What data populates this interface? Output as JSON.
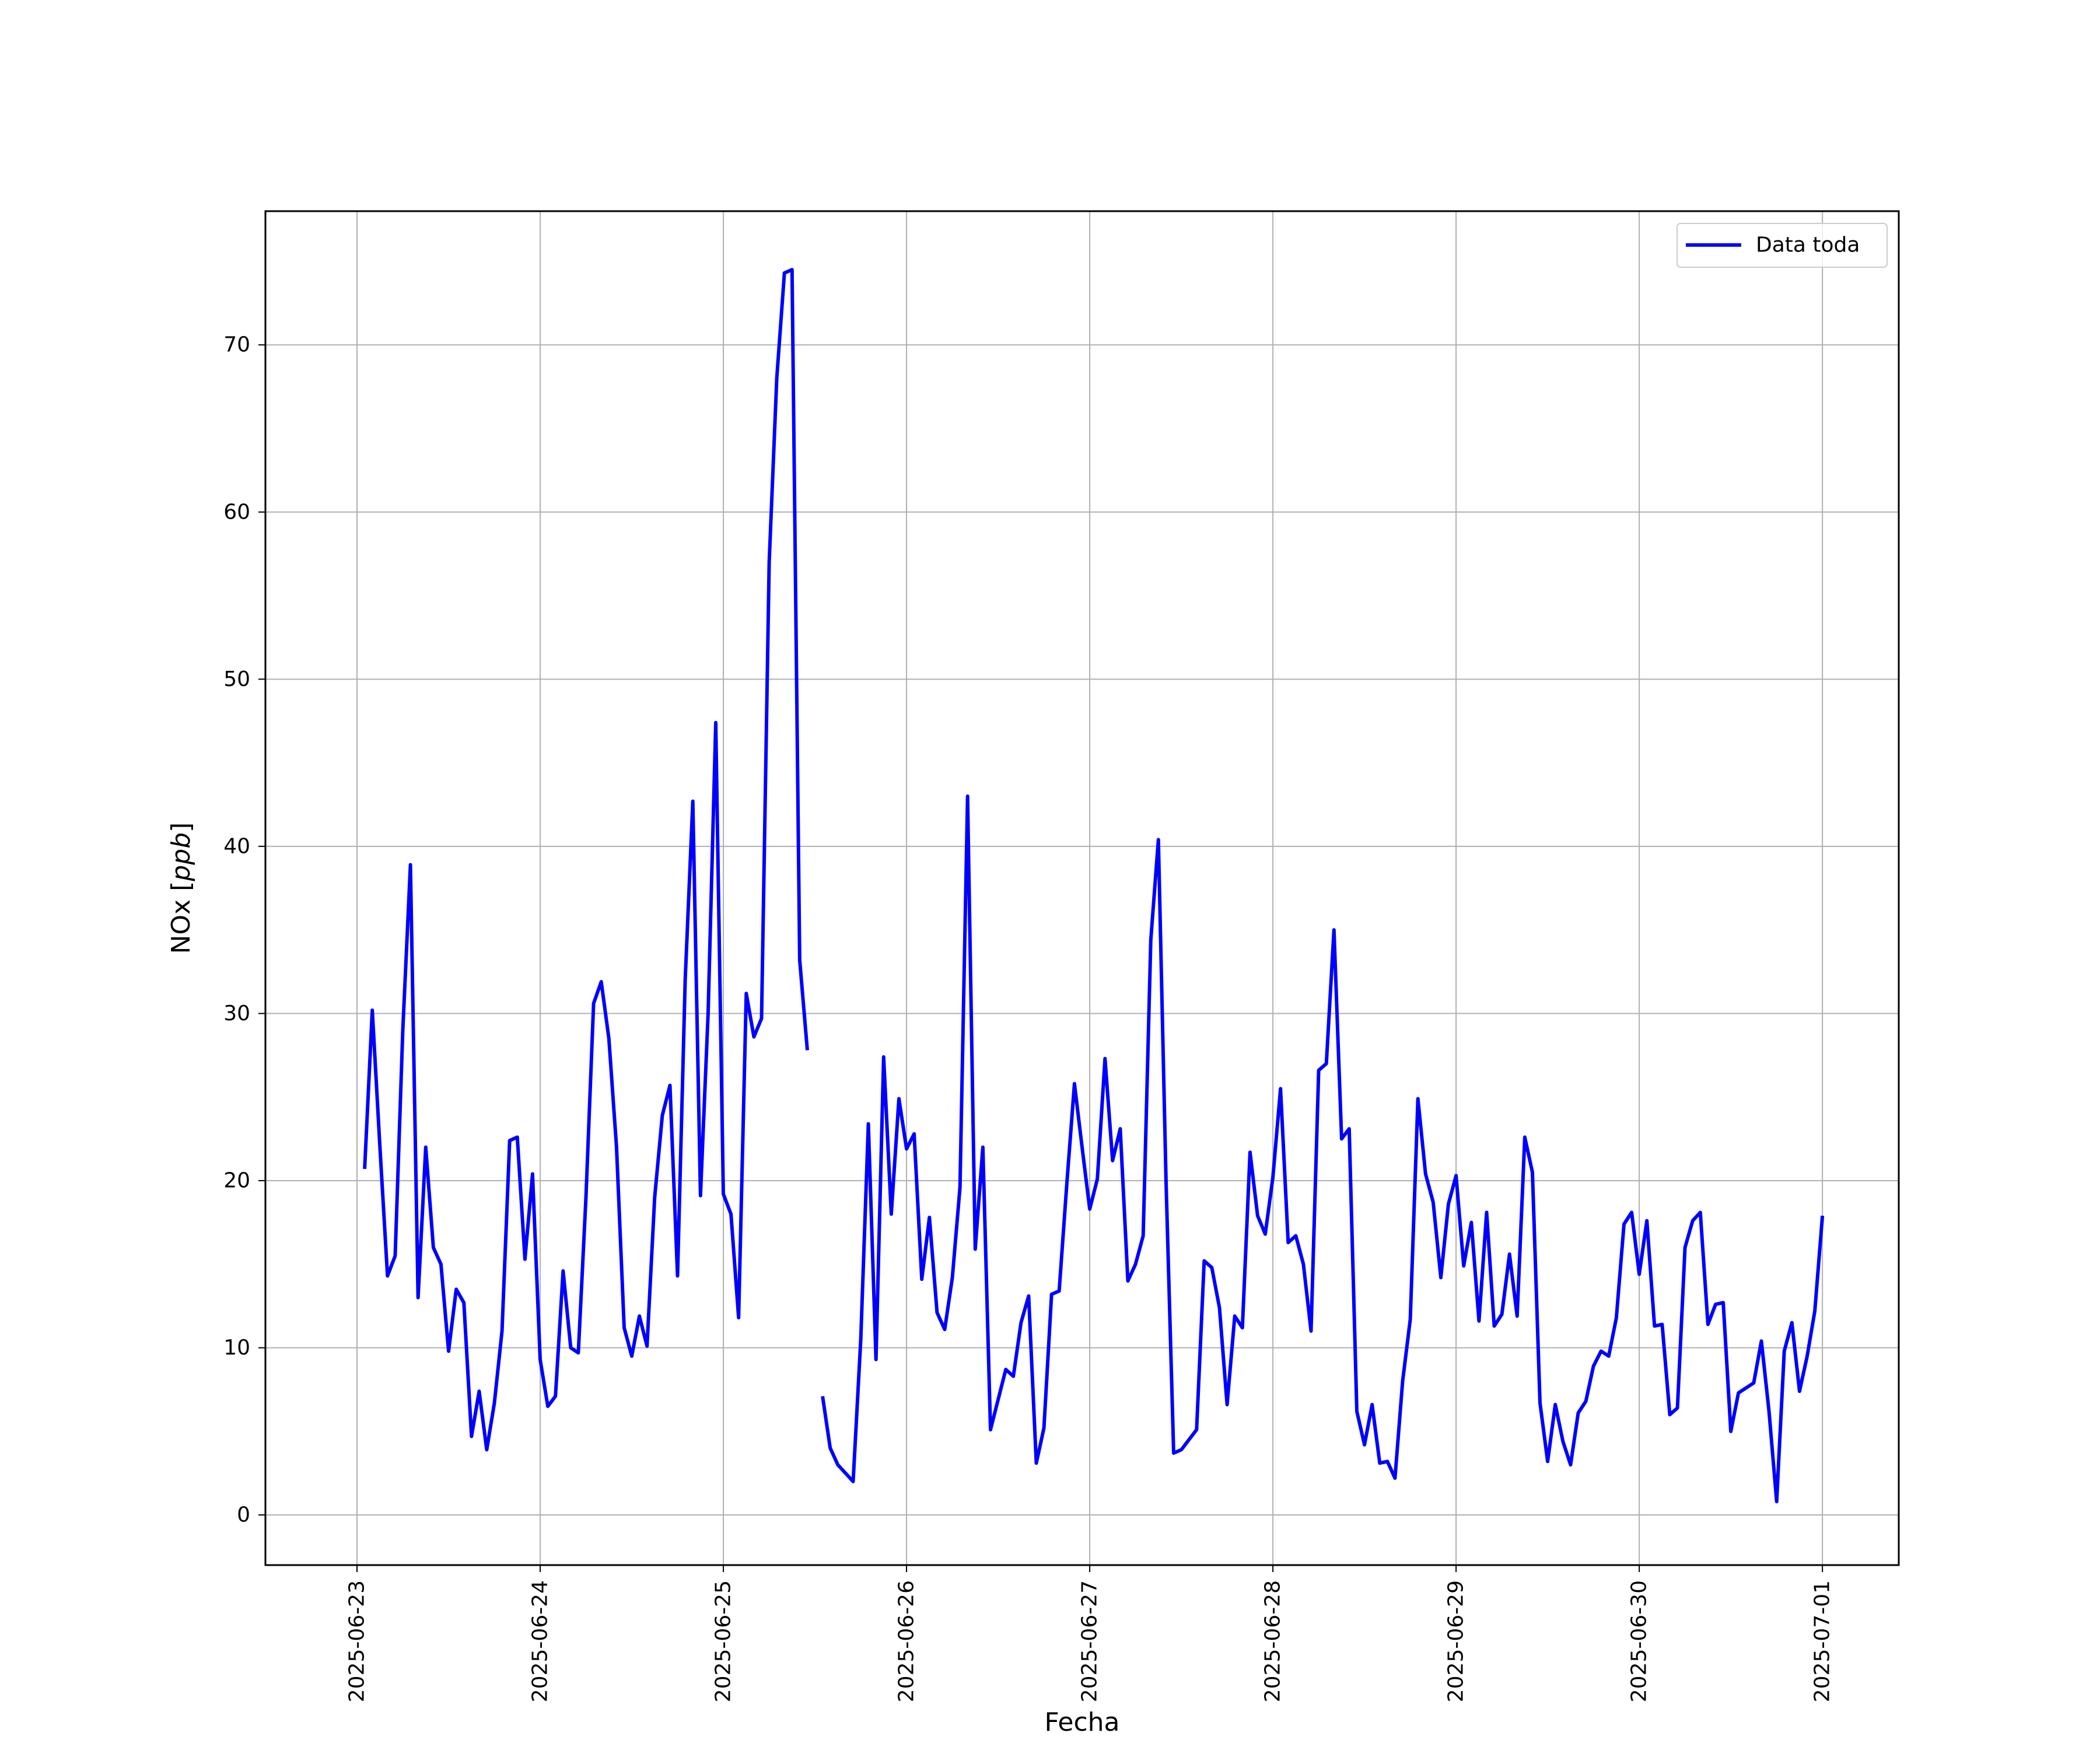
{
  "chart_data": {
    "type": "line",
    "xlabel": "Fecha",
    "ylabel_main": "NOx [",
    "ylabel_unit": "ppb",
    "ylabel_close": "]",
    "xlim": [
      "2025-06-22T12:00",
      "2025-07-01T10:00"
    ],
    "ylim": [
      -3,
      78
    ],
    "xticks": [
      "2025-06-23",
      "2025-06-24",
      "2025-06-25",
      "2025-06-26",
      "2025-06-27",
      "2025-06-28",
      "2025-06-29",
      "2025-06-30",
      "2025-07-01"
    ],
    "yticks": [
      0,
      10,
      20,
      30,
      40,
      50,
      60,
      70
    ],
    "grid": true,
    "legend_position": "top-right",
    "colors": {
      "series": "#0000ff",
      "grid": "#b0b0b0",
      "axis": "#000000"
    },
    "series": [
      {
        "name": "Data toda",
        "x": [
          "2025-06-23T01:00",
          "2025-06-23T02:00",
          "2025-06-23T03:00",
          "2025-06-23T04:00",
          "2025-06-23T05:00",
          "2025-06-23T06:00",
          "2025-06-23T07:00",
          "2025-06-23T08:00",
          "2025-06-23T09:00",
          "2025-06-23T10:00",
          "2025-06-23T11:00",
          "2025-06-23T12:00",
          "2025-06-23T13:00",
          "2025-06-23T14:00",
          "2025-06-23T15:00",
          "2025-06-23T16:00",
          "2025-06-23T17:00",
          "2025-06-23T18:00",
          "2025-06-23T19:00",
          "2025-06-23T20:00",
          "2025-06-23T21:00",
          "2025-06-23T22:00",
          "2025-06-23T23:00",
          "2025-06-24T00:00",
          "2025-06-24T01:00",
          "2025-06-24T02:00",
          "2025-06-24T03:00",
          "2025-06-24T04:00",
          "2025-06-24T05:00",
          "2025-06-24T06:00",
          "2025-06-24T07:00",
          "2025-06-24T08:00",
          "2025-06-24T09:00",
          "2025-06-24T10:00",
          "2025-06-24T11:00",
          "2025-06-24T12:00",
          "2025-06-24T13:00",
          "2025-06-24T14:00",
          "2025-06-24T15:00",
          "2025-06-24T16:00",
          "2025-06-24T17:00",
          "2025-06-24T18:00",
          "2025-06-24T19:00",
          "2025-06-24T20:00",
          "2025-06-24T21:00",
          "2025-06-24T22:00",
          "2025-06-24T23:00",
          "2025-06-25T00:00",
          "2025-06-25T01:00",
          "2025-06-25T02:00",
          "2025-06-25T03:00",
          "2025-06-25T04:00",
          "2025-06-25T05:00",
          "2025-06-25T06:00",
          "2025-06-25T07:00",
          "2025-06-25T08:00",
          "2025-06-25T09:00",
          "2025-06-25T10:00",
          "2025-06-25T11:00",
          null,
          "2025-06-25T13:00",
          "2025-06-25T14:00",
          "2025-06-25T15:00",
          "2025-06-25T16:00",
          "2025-06-25T17:00",
          "2025-06-25T18:00",
          "2025-06-25T19:00",
          "2025-06-25T20:00",
          "2025-06-25T21:00",
          "2025-06-25T22:00",
          "2025-06-25T23:00",
          "2025-06-26T00:00",
          "2025-06-26T01:00",
          "2025-06-26T02:00",
          "2025-06-26T03:00",
          "2025-06-26T04:00",
          "2025-06-26T05:00",
          "2025-06-26T06:00",
          "2025-06-26T07:00",
          "2025-06-26T08:00",
          "2025-06-26T09:00",
          "2025-06-26T10:00",
          "2025-06-26T11:00",
          "2025-06-26T12:00",
          "2025-06-26T13:00",
          "2025-06-26T14:00",
          "2025-06-26T15:00",
          "2025-06-26T16:00",
          "2025-06-26T17:00",
          "2025-06-26T18:00",
          "2025-06-26T19:00",
          "2025-06-26T20:00",
          "2025-06-26T21:00",
          "2025-06-26T22:00",
          "2025-06-26T23:00",
          "2025-06-27T00:00",
          "2025-06-27T01:00",
          "2025-06-27T02:00",
          "2025-06-27T03:00",
          "2025-06-27T04:00",
          "2025-06-27T05:00",
          "2025-06-27T06:00",
          "2025-06-27T07:00",
          "2025-06-27T08:00",
          "2025-06-27T09:00",
          "2025-06-27T10:00",
          "2025-06-27T11:00",
          "2025-06-27T12:00",
          "2025-06-27T13:00",
          "2025-06-27T14:00",
          "2025-06-27T15:00",
          "2025-06-27T16:00",
          "2025-06-27T17:00",
          "2025-06-27T18:00",
          "2025-06-27T19:00",
          "2025-06-27T20:00",
          "2025-06-27T21:00",
          "2025-06-27T22:00",
          "2025-06-27T23:00",
          "2025-06-28T00:00",
          "2025-06-28T01:00",
          "2025-06-28T02:00",
          "2025-06-28T03:00",
          "2025-06-28T04:00",
          "2025-06-28T05:00",
          "2025-06-28T06:00",
          "2025-06-28T07:00",
          "2025-06-28T08:00",
          "2025-06-28T09:00",
          "2025-06-28T10:00",
          "2025-06-28T11:00",
          "2025-06-28T12:00",
          "2025-06-28T13:00",
          "2025-06-28T14:00",
          "2025-06-28T15:00",
          "2025-06-28T16:00",
          "2025-06-28T17:00",
          "2025-06-28T18:00",
          "2025-06-28T19:00",
          "2025-06-28T20:00",
          "2025-06-28T21:00",
          "2025-06-28T22:00",
          "2025-06-28T23:00",
          "2025-06-29T00:00",
          "2025-06-29T01:00",
          "2025-06-29T02:00",
          "2025-06-29T03:00",
          "2025-06-29T04:00",
          "2025-06-29T05:00",
          "2025-06-29T06:00",
          "2025-06-29T07:00",
          "2025-06-29T08:00",
          "2025-06-29T09:00",
          "2025-06-29T10:00",
          "2025-06-29T11:00",
          "2025-06-29T12:00",
          "2025-06-29T13:00",
          "2025-06-29T14:00",
          "2025-06-29T15:00",
          "2025-06-29T16:00",
          "2025-06-29T17:00",
          "2025-06-29T18:00",
          "2025-06-29T19:00",
          "2025-06-29T20:00",
          "2025-06-29T21:00",
          "2025-06-29T22:00",
          "2025-06-29T23:00",
          "2025-06-30T00:00",
          "2025-06-30T01:00",
          "2025-06-30T02:00",
          "2025-06-30T03:00",
          "2025-06-30T04:00",
          "2025-06-30T05:00",
          "2025-06-30T06:00",
          "2025-06-30T07:00",
          "2025-06-30T08:00",
          "2025-06-30T09:00",
          "2025-06-30T10:00",
          "2025-06-30T11:00",
          "2025-06-30T12:00",
          "2025-06-30T13:00",
          "2025-06-30T14:00",
          "2025-06-30T15:00",
          "2025-06-30T16:00",
          "2025-06-30T17:00",
          "2025-06-30T18:00",
          "2025-06-30T19:00",
          "2025-06-30T20:00",
          "2025-06-30T21:00",
          "2025-06-30T22:00",
          "2025-06-30T23:00",
          "2025-07-01T00:00"
        ],
        "values": [
          20.7,
          30.2,
          22,
          14.3,
          15.5,
          29,
          38.9,
          13,
          22,
          16,
          15,
          9.8,
          13.5,
          12.7,
          4.7,
          7.4,
          3.9,
          6.7,
          11,
          22.4,
          22.6,
          15.3,
          20.4,
          9.3,
          6.5,
          7.1,
          14.6,
          10,
          9.7,
          19,
          30.6,
          31.9,
          28.5,
          22,
          11.2,
          9.5,
          11.9,
          10.1,
          19,
          23.9,
          25.7,
          14.3,
          32,
          42.7,
          19.1,
          30,
          47.4,
          19.2,
          18,
          11.8,
          31.2,
          28.6,
          29.7,
          57,
          68,
          74.3,
          74.5,
          33.2,
          27.8,
          null,
          7.1,
          4,
          3,
          2.5,
          2,
          10.5,
          23.4,
          9.3,
          27.4,
          18,
          24.9,
          21.9,
          22.8,
          14.1,
          17.8,
          12.1,
          11.1,
          14.2,
          19.6,
          43,
          15.9,
          22,
          5.1,
          6.9,
          8.7,
          8.3,
          11.5,
          13.1,
          3.1,
          5.2,
          13.2,
          13.4,
          19.8,
          25.8,
          22,
          18.3,
          20.1,
          27.3,
          21.2,
          23.1,
          14,
          15,
          16.7,
          34.4,
          40.4,
          20,
          3.7,
          3.9,
          4.5,
          5.1,
          15.2,
          14.8,
          12.4,
          6.6,
          11.9,
          11.2,
          21.7,
          17.9,
          16.8,
          20.2,
          25.5,
          16.3,
          16.7,
          15,
          11,
          26.6,
          27,
          35,
          22.5,
          23.1,
          6.2,
          4.2,
          6.6,
          3.1,
          3.2,
          2.2,
          8,
          11.7,
          24.9,
          20.4,
          18.7,
          14.2,
          18.6,
          20.3,
          14.9,
          17.5,
          11.6,
          18.1,
          11.3,
          12,
          15.6,
          11.9,
          22.6,
          20.5,
          6.7,
          3.2,
          6.6,
          4.4,
          3,
          6.1,
          6.8,
          8.9,
          9.8,
          9.5,
          11.8,
          17.4,
          18.1,
          14.4,
          17.6,
          11.3,
          11.4,
          6,
          6.4,
          16,
          17.6,
          18.1,
          11.4,
          12.6,
          12.7,
          5,
          7.3,
          7.6,
          7.9,
          10.4,
          6.2,
          0.8,
          9.8,
          11.5,
          7.4,
          9.5,
          12.2,
          17.9
        ]
      }
    ]
  }
}
